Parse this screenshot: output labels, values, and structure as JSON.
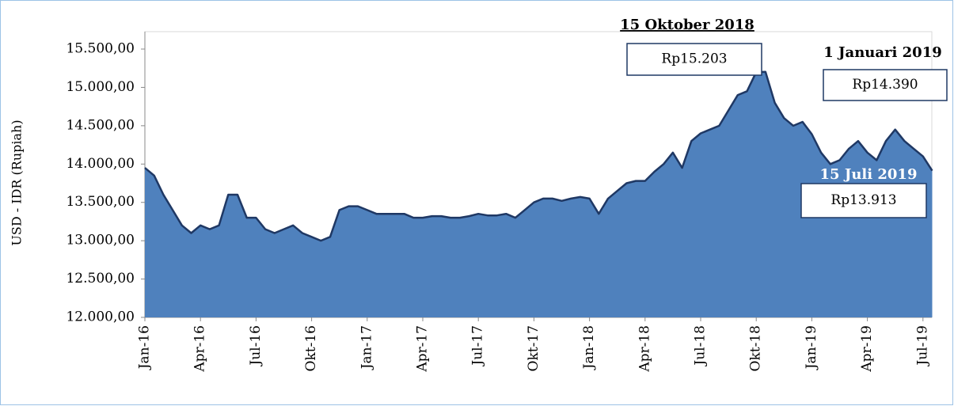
{
  "chart_data": {
    "type": "area",
    "y_label": "USD - IDR (Rupiah)",
    "categories": [
      "Jan-16",
      null,
      null,
      null,
      null,
      null,
      "Apr-16",
      null,
      null,
      null,
      null,
      null,
      "Jul-16",
      null,
      null,
      null,
      null,
      null,
      "Okt-16",
      null,
      null,
      null,
      null,
      null,
      "Jan-17",
      null,
      null,
      null,
      null,
      null,
      "Apr-17",
      null,
      null,
      null,
      null,
      null,
      "Jul-17",
      null,
      null,
      null,
      null,
      null,
      "Okt-17",
      null,
      null,
      null,
      null,
      null,
      "Jan-18",
      null,
      null,
      null,
      null,
      null,
      "Apr-18",
      null,
      null,
      null,
      null,
      null,
      "Jul-18",
      null,
      null,
      null,
      null,
      null,
      "Okt-18",
      null,
      null,
      null,
      null,
      null,
      "Jan-19",
      null,
      null,
      null,
      null,
      null,
      "Apr-19",
      null,
      null,
      null,
      null,
      null,
      "Jul-19",
      null
    ],
    "series": [
      {
        "name": "USD - IDR",
        "color": "#4f81bd",
        "line_color": "#1f3864",
        "values": [
          13950,
          13850,
          13600,
          13400,
          13200,
          13100,
          13200,
          13150,
          13200,
          13600,
          13600,
          13300,
          13300,
          13150,
          13100,
          13150,
          13200,
          13100,
          13050,
          13000,
          13050,
          13400,
          13450,
          13450,
          13400,
          13350,
          13350,
          13350,
          13350,
          13300,
          13300,
          13320,
          13320,
          13300,
          13300,
          13320,
          13350,
          13330,
          13330,
          13350,
          13300,
          13400,
          13500,
          13550,
          13550,
          13520,
          13550,
          13570,
          13550,
          13350,
          13550,
          13650,
          13750,
          13780,
          13780,
          13900,
          14000,
          14150,
          13950,
          14300,
          14400,
          14450,
          14500,
          14700,
          14900,
          14950,
          15200,
          15203,
          14800,
          14600,
          14500,
          14550,
          14390,
          14150,
          14000,
          14050,
          14200,
          14300,
          14150,
          14050,
          14300,
          14450,
          14300,
          14200,
          14100,
          13913
        ]
      }
    ],
    "ylim": [
      12000,
      15500
    ],
    "yticks": [
      {
        "value": 12000,
        "label": "12.000,00"
      },
      {
        "value": 12500,
        "label": "12.500,00"
      },
      {
        "value": 13000,
        "label": "13.000,00"
      },
      {
        "value": 13500,
        "label": "13.500,00"
      },
      {
        "value": 14000,
        "label": "14.000,00"
      },
      {
        "value": 14500,
        "label": "14.500,00"
      },
      {
        "value": 15000,
        "label": "15.000,00"
      },
      {
        "value": 15500,
        "label": "15.500,00"
      }
    ],
    "grid": false,
    "annotations": [
      {
        "title": "15 Oktober 2018",
        "text": "Rp15.203"
      },
      {
        "title": "1 Januari 2019",
        "text": "Rp14.390"
      },
      {
        "title": "15 Juli 2019",
        "text": "Rp13.913"
      }
    ]
  }
}
